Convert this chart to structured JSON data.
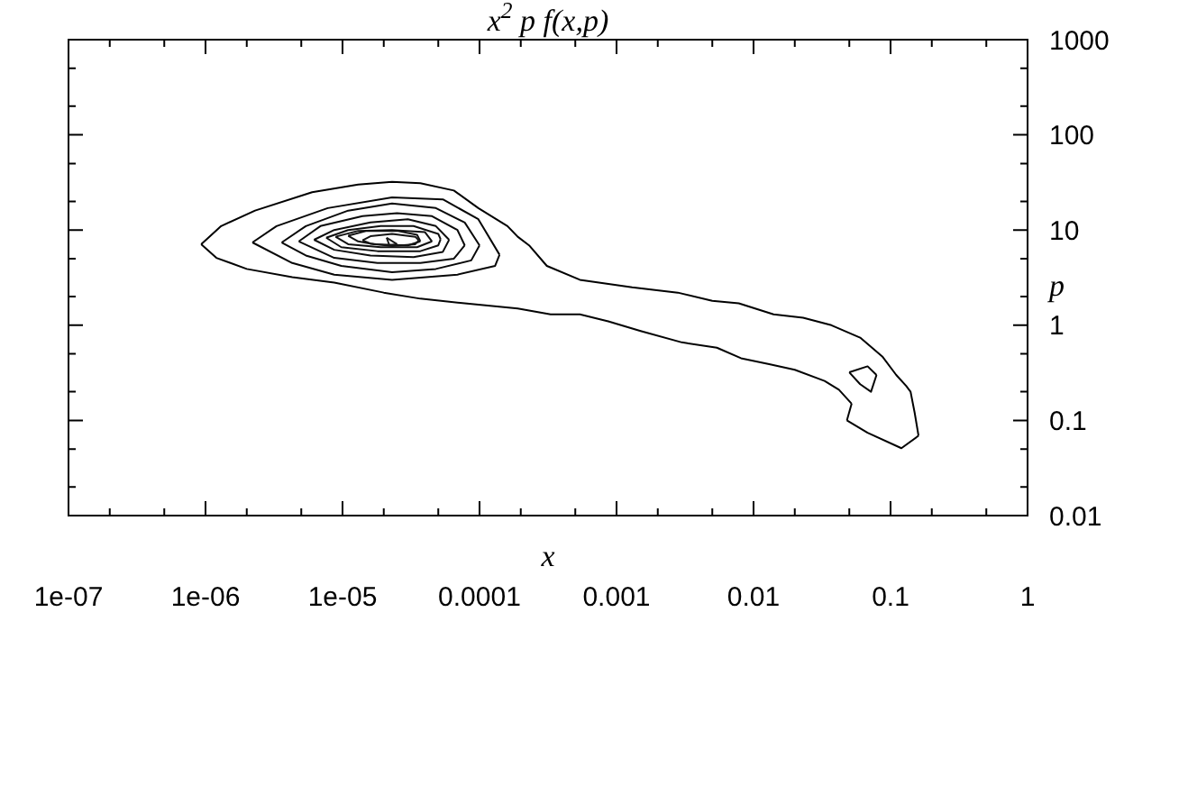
{
  "chart_data": {
    "type": "line",
    "title": "x$^{2}$ p f(x,p)",
    "xlabel": "x",
    "ylabel": "p",
    "log": "xy",
    "line_style": "solid",
    "marker": "none",
    "xlim": [
      1e-07,
      1
    ],
    "ylim": [
      0.01,
      1000
    ],
    "xticks": [
      {
        "value": 1e-07,
        "label": "1e-07"
      },
      {
        "value": 2e-07,
        "label": null
      },
      {
        "value": 5e-07,
        "label": null
      },
      {
        "value": 1e-06,
        "label": "1e-06"
      },
      {
        "value": 2e-06,
        "label": null
      },
      {
        "value": 5e-06,
        "label": null
      },
      {
        "value": 1e-05,
        "label": "1e-05"
      },
      {
        "value": 2e-05,
        "label": null
      },
      {
        "value": 5e-05,
        "label": null
      },
      0.0001,
      {
        "value": 0.0002,
        "label": null
      },
      {
        "value": 0.0005,
        "label": null
      },
      0.001,
      {
        "value": 0.002,
        "label": null
      },
      {
        "value": 0.005,
        "label": null
      },
      0.01,
      {
        "value": 0.02,
        "label": null
      },
      {
        "value": 0.05,
        "label": null
      },
      0.1,
      {
        "value": 0.2,
        "label": null
      },
      {
        "value": 0.5,
        "label": null
      },
      1
    ],
    "yticks": [
      0.01,
      {
        "value": 0.02,
        "label": null
      },
      {
        "value": 0.05,
        "label": null
      },
      0.1,
      {
        "value": 0.2,
        "label": null
      },
      {
        "value": 0.5,
        "label": null
      },
      1,
      {
        "value": 2,
        "label": null
      },
      {
        "value": 5,
        "label": null
      },
      10,
      {
        "value": 20,
        "label": null
      },
      {
        "value": 50,
        "label": null
      },
      100,
      {
        "value": 200,
        "label": null
      },
      {
        "value": 500,
        "label": null
      },
      1000
    ],
    "series": [
      {
        "color": "#000000",
        "x": [
          9.3e-07,
          1.3e-06,
          2.3e-06,
          6e-06,
          1.3e-05,
          2.3e-05,
          3.7e-05,
          6.5e-05,
          9.8e-05,
          0.00016,
          0.00019,
          0.00023,
          0.00031,
          0.00054,
          0.0013,
          0.0028,
          0.005,
          0.0078,
          0.014,
          0.023,
          0.037,
          0.06,
          0.087,
          0.11,
          0.13,
          0.14,
          0.15,
          0.16
        ],
        "values": [
          7.1,
          11,
          16,
          25,
          30,
          32,
          31,
          26,
          17,
          11,
          8.5,
          6.9,
          4.2,
          3.0,
          2.5,
          2.2,
          1.8,
          1.7,
          1.3,
          1.2,
          1.0,
          0.74,
          0.47,
          0.3,
          0.23,
          0.2,
          0.12,
          0.069
        ]
      },
      {
        "color": "#010101",
        "x": [
          0.048,
          0.068,
          0.12,
          0.16
        ],
        "values": [
          0.1,
          0.074,
          0.051,
          0.069
        ]
      },
      {
        "color": "#020202",
        "x": [
          0.048,
          0.052
        ],
        "values": [
          0.1,
          0.15
        ]
      },
      {
        "color": "#030303",
        "x": [
          9.3e-07,
          1.2e-06,
          2e-06,
          4.3e-06,
          8.7e-06,
          2e-05,
          3.7e-05,
          7.8e-05,
          0.00019,
          0.00033,
          0.00054,
          0.00087,
          0.0015,
          0.003,
          0.0054,
          0.0081,
          0.013,
          0.02,
          0.033,
          0.042,
          0.052
        ],
        "values": [
          7.1,
          5.1,
          3.9,
          3.2,
          2.8,
          2.2,
          1.9,
          1.7,
          1.5,
          1.3,
          1.3,
          1.1,
          0.87,
          0.66,
          0.58,
          0.45,
          0.39,
          0.34,
          0.26,
          0.21,
          0.15
        ]
      },
      {
        "color": "#040404",
        "x": [
          0.05,
          0.068,
          0.079
        ],
        "values": [
          0.32,
          0.37,
          0.3
        ]
      },
      {
        "color": "#050505",
        "x": [
          0.05,
          0.06,
          0.072,
          0.079
        ],
        "values": [
          0.32,
          0.24,
          0.2,
          0.3
        ]
      },
      {
        "color": "#060606",
        "x": [
          2.2e-06,
          3.3e-06,
          7.8e-06,
          2.3e-05,
          5.4e-05,
          9.8e-05,
          0.00014
        ],
        "values": [
          7.4,
          11,
          17,
          22,
          21,
          13,
          5.5
        ]
      },
      {
        "color": "#070707",
        "x": [
          2.2e-06,
          4.3e-06,
          8.7e-06,
          2.3e-05,
          6.9e-05,
          0.00013,
          0.00014
        ],
        "values": [
          7.4,
          4.5,
          3.4,
          3.0,
          3.4,
          4.2,
          5.5
        ]
      },
      {
        "color": "#080808",
        "x": [
          3.6e-06,
          5.4e-06,
          1.1e-05,
          2.3e-05,
          4.8e-05,
          7.8e-05,
          0.0001
        ],
        "values": [
          7.4,
          11,
          16,
          19,
          17,
          12,
          6.9
        ]
      },
      {
        "color": "#090909",
        "x": [
          3.6e-06,
          5.4e-06,
          9.8e-06,
          2.3e-05,
          4.8e-05,
          8.7e-05,
          0.0001
        ],
        "values": [
          7.4,
          5.4,
          4.2,
          3.6,
          3.9,
          4.8,
          6.9
        ]
      },
      {
        "color": "#0a0a0a",
        "x": [
          4.8e-06,
          6.9e-06,
          1.4e-05,
          2.5e-05,
          4.5e-05,
          6.9e-05,
          7.8e-05
        ],
        "values": [
          7.6,
          11,
          14,
          15,
          14,
          10,
          6.9
        ]
      },
      {
        "color": "#0b0b0b",
        "x": [
          4.8e-06,
          8.7e-06,
          1.8e-05,
          3.7e-05,
          6.5e-05,
          7.8e-05
        ],
        "values": [
          7.6,
          5.1,
          4.5,
          4.5,
          5.0,
          6.9
        ]
      },
      {
        "color": "#0c0c0c",
        "x": [
          6.2e-06,
          8.7e-06,
          1.6e-05,
          3e-05,
          4.8e-05,
          6e-05
        ],
        "values": [
          7.9,
          10,
          12,
          13,
          11,
          7.9
        ]
      },
      {
        "color": "#0d0d0d",
        "x": [
          6.2e-06,
          8.7e-06,
          1.6e-05,
          3.3e-05,
          5.4e-05,
          6e-05
        ],
        "values": [
          7.9,
          6.2,
          5.4,
          5.2,
          5.9,
          7.9
        ]
      },
      {
        "color": "#0e0e0e",
        "x": [
          7.6e-06,
          1.1e-05,
          1.9e-05,
          3.3e-05,
          5e-05,
          5.2e-05
        ],
        "values": [
          8.3,
          10,
          11,
          11,
          9.1,
          8.0
        ]
      },
      {
        "color": "#0f0f0f",
        "x": [
          7.6e-06,
          9.8e-06,
          1.8e-05,
          3.7e-05,
          5e-05,
          5.2e-05
        ],
        "values": [
          8.3,
          6.6,
          6.0,
          6.0,
          6.9,
          8.0
        ]
      },
      {
        "color": "#101010",
        "x": [
          8.9e-06,
          1.3e-05,
          2.3e-05,
          4e-05,
          4.5e-05
        ],
        "values": [
          8.5,
          9.8,
          10,
          9.5,
          7.6
        ]
      },
      {
        "color": "#111111",
        "x": [
          8.9e-06,
          1.1e-05,
          1.9e-05,
          3.5e-05,
          4.5e-05
        ],
        "values": [
          8.5,
          7.1,
          6.6,
          6.6,
          7.6
        ]
      },
      {
        "color": "#121212",
        "x": [
          1.1e-05,
          1.5e-05,
          2.5e-05,
          3.5e-05,
          3.7e-05
        ],
        "values": [
          8.7,
          9.8,
          9.8,
          8.9,
          7.6
        ]
      },
      {
        "color": "#131313",
        "x": [
          1.1e-05,
          1.3e-05,
          1.7e-05,
          3e-05,
          3.7e-05
        ],
        "values": [
          8.7,
          7.6,
          7.1,
          6.9,
          7.6
        ]
      },
      {
        "color": "#141414",
        "x": [
          1.4e-05,
          1.6e-05,
          2.3e-05,
          3.4e-05,
          3.6e-05
        ],
        "values": [
          7.8,
          8.6,
          9.1,
          8.5,
          7.8
        ]
      },
      {
        "color": "#151515",
        "x": [
          1.4e-05,
          1.6e-05,
          2.3e-05,
          3.4e-05,
          3.6e-05
        ],
        "values": [
          7.8,
          7.2,
          6.8,
          7.1,
          7.8
        ]
      },
      {
        "color": "#161616",
        "x": [
          2.1e-05,
          2.5e-05
        ],
        "values": [
          8.3,
          7.1
        ]
      },
      {
        "color": "#171717",
        "x": [
          2.1e-05,
          2.2e-05,
          2.5e-05
        ],
        "values": [
          8.3,
          6.9,
          7.1
        ]
      }
    ]
  }
}
